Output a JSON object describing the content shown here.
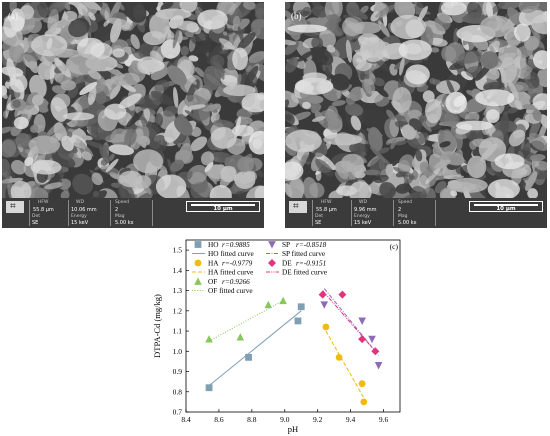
{
  "panel_a": {
    "letter": "(a)",
    "info": {
      "hfw_label": "HFW",
      "hfw_value": "55.8 µm",
      "wd_label": "WD",
      "wd_value": "10.06 mm",
      "speed_label": "Speed",
      "speed_value": "2",
      "det_label": "Det",
      "det_value": "SE",
      "energy_label": "Energy",
      "energy_value": "15 keV",
      "mag_label": "Mag",
      "mag_value": "5.00 kx",
      "scale_label": "10 µm"
    }
  },
  "panel_b": {
    "letter": "(b)",
    "info": {
      "hfw_label": "HFW",
      "hfw_value": "55.8 µm",
      "wd_label": "WD",
      "wd_value": "9.96 mm",
      "speed_label": "Speed",
      "speed_value": "2",
      "det_label": "Det",
      "det_value": "SE",
      "energy_label": "Energy",
      "energy_value": "15 keV",
      "mag_label": "Mag",
      "mag_value": "5.00 kx",
      "scale_label": "10 µm"
    }
  },
  "panel_c": {
    "letter": "(c)"
  },
  "colors": {
    "HO": "#7f9fb5",
    "HA": "#f2b90f",
    "OF": "#88c75a",
    "SP": "#8e6bb8",
    "DE": "#e0357e"
  },
  "chart_data": {
    "type": "scatter",
    "xlabel": "pH",
    "ylabel": "DTPA-Cd (mg/kg)",
    "xlim": [
      8.4,
      9.7
    ],
    "ylim": [
      0.7,
      1.55
    ],
    "xticks": [
      "8.4",
      "8.6",
      "8.8",
      "9.0",
      "9.2",
      "9.4",
      "9.6"
    ],
    "yticks": [
      "0.7",
      "0.8",
      "0.9",
      "1.0",
      "1.1",
      "1.2",
      "1.3",
      "1.4",
      "1.5"
    ],
    "grid": false,
    "legend_placement": "top",
    "series": [
      {
        "key": "HO",
        "name": "HO",
        "r_label": "r=0.9885",
        "fit_label": "HO fitted curve",
        "marker": "square",
        "line": "solid",
        "points": [
          [
            8.54,
            0.82
          ],
          [
            8.78,
            0.97
          ],
          [
            9.08,
            1.15
          ],
          [
            9.1,
            1.22
          ]
        ],
        "fit": [
          [
            8.54,
            0.83
          ],
          [
            9.1,
            1.2
          ]
        ]
      },
      {
        "key": "HA",
        "name": "HA",
        "r_label": "r=-0.9779",
        "fit_label": "HA fitted curve",
        "marker": "circle",
        "line": "dashed",
        "points": [
          [
            9.25,
            1.12
          ],
          [
            9.33,
            0.97
          ],
          [
            9.47,
            0.84
          ],
          [
            9.48,
            0.75
          ]
        ],
        "fit": [
          [
            9.25,
            1.1
          ],
          [
            9.48,
            0.77
          ]
        ]
      },
      {
        "key": "OF",
        "name": "OF",
        "r_label": "r=0.9266",
        "fit_label": "OF fitted curve",
        "marker": "triangle-up",
        "line": "dotted",
        "points": [
          [
            8.54,
            1.06
          ],
          [
            8.73,
            1.07
          ],
          [
            8.9,
            1.23
          ],
          [
            8.99,
            1.25
          ]
        ],
        "fit": [
          [
            8.54,
            1.05
          ],
          [
            8.99,
            1.25
          ]
        ]
      },
      {
        "key": "SP",
        "name": "SP",
        "r_label": "r=-0.8518",
        "fit_label": "SP fitted curve",
        "marker": "triangle-down",
        "line": "dashdot",
        "points": [
          [
            9.24,
            1.23
          ],
          [
            9.47,
            1.15
          ],
          [
            9.53,
            1.06
          ],
          [
            9.57,
            0.93
          ]
        ],
        "fit": [
          [
            9.24,
            1.31
          ],
          [
            9.57,
            0.98
          ]
        ]
      },
      {
        "key": "DE",
        "name": "DE",
        "r_label": "r=-0.9151",
        "fit_label": "DE fitted curve",
        "marker": "diamond",
        "line": "dashdotdot",
        "points": [
          [
            9.23,
            1.28
          ],
          [
            9.35,
            1.28
          ],
          [
            9.47,
            1.06
          ],
          [
            9.55,
            1.0
          ]
        ],
        "fit": [
          [
            9.23,
            1.3
          ],
          [
            9.55,
            1.0
          ]
        ]
      }
    ]
  }
}
